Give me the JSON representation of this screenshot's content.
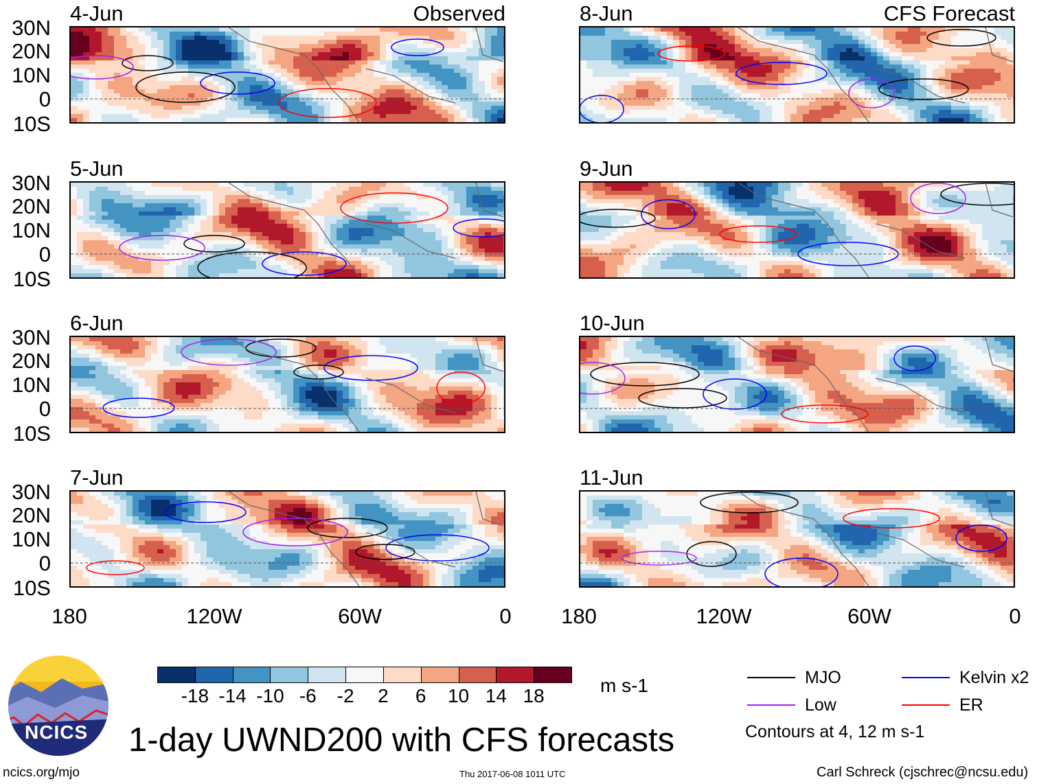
{
  "header": {
    "left_label": "Observed",
    "right_label": "CFS Forecast"
  },
  "panels": {
    "observed": [
      {
        "date": "4-Jun"
      },
      {
        "date": "5-Jun"
      },
      {
        "date": "6-Jun"
      },
      {
        "date": "7-Jun"
      }
    ],
    "forecast": [
      {
        "date": "8-Jun"
      },
      {
        "date": "9-Jun"
      },
      {
        "date": "10-Jun"
      },
      {
        "date": "11-Jun"
      }
    ]
  },
  "axes": {
    "lat_ticks": [
      "30N",
      "20N",
      "10N",
      "0",
      "10S"
    ],
    "lon_ticks": [
      "180",
      "120W",
      "60W",
      "0"
    ]
  },
  "colorbar": {
    "colors": [
      "#08306b",
      "#2166ac",
      "#4393c3",
      "#92c5de",
      "#d1e5f0",
      "#f7f7f7",
      "#fddbc7",
      "#f4a582",
      "#d6604d",
      "#b2182b",
      "#67001f"
    ],
    "labels": [
      "-18",
      "-14",
      "-10",
      "-6",
      "-2",
      "2",
      "6",
      "10",
      "14",
      "18"
    ],
    "units": "m s-1"
  },
  "legend": {
    "items": [
      {
        "label": "MJO",
        "color": "#000000"
      },
      {
        "label": "Kelvin x2",
        "color": "#0000ff"
      },
      {
        "label": "Low",
        "color": "#a020f0"
      },
      {
        "label": "ER",
        "color": "#ff0000"
      }
    ],
    "note": "Contours at 4, 12 m s-1"
  },
  "title": "1-day UWND200 with CFS forecasts",
  "logo_text": "NCICS",
  "footer": {
    "url": "ncics.org/mjo",
    "timestamp": "Thu 2017-06-08 1011 UTC",
    "credit": "Carl Schreck (cjschrec@ncsu.edu)"
  }
}
